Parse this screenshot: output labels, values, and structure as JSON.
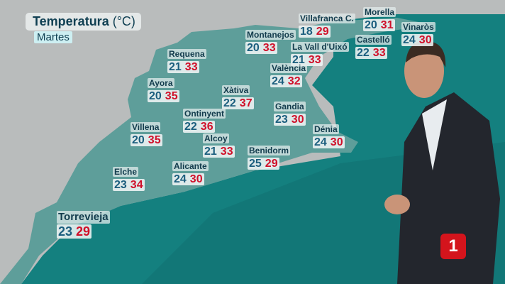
{
  "title": {
    "label": "Temperatura",
    "unit": "(°C)",
    "day": "Martes"
  },
  "colors": {
    "min": "#1b5e7e",
    "max": "#d0102a",
    "sea": "#14807f",
    "region": "#5e9e9a",
    "land": "#b9bcbc"
  },
  "stations": [
    {
      "name": "Villafranca C.",
      "min": "18",
      "max": "29"
    },
    {
      "name": "Morella",
      "min": "20",
      "max": "31"
    },
    {
      "name": "Vinaròs",
      "min": "24",
      "max": "30"
    },
    {
      "name": "Montanejos",
      "min": "20",
      "max": "33"
    },
    {
      "name": "Castelló",
      "min": "22",
      "max": "33"
    },
    {
      "name": "La Vall d'Uixó",
      "min": "21",
      "max": "33"
    },
    {
      "name": "Requena",
      "min": "21",
      "max": "33"
    },
    {
      "name": "València",
      "min": "24",
      "max": "32"
    },
    {
      "name": "Ayora",
      "min": "20",
      "max": "35"
    },
    {
      "name": "Xàtiva",
      "min": "22",
      "max": "37"
    },
    {
      "name": "Gandia",
      "min": "23",
      "max": "30"
    },
    {
      "name": "Ontinyent",
      "min": "22",
      "max": "36"
    },
    {
      "name": "Villena",
      "min": "20",
      "max": "35"
    },
    {
      "name": "Dénia",
      "min": "24",
      "max": "30"
    },
    {
      "name": "Alcoy",
      "min": "21",
      "max": "33"
    },
    {
      "name": "Benidorm",
      "min": "25",
      "max": "29"
    },
    {
      "name": "Alicante",
      "min": "24",
      "max": "30"
    },
    {
      "name": "Elche",
      "min": "23",
      "max": "34"
    },
    {
      "name": "Torrevieja",
      "min": "23",
      "max": "29"
    }
  ],
  "logo": {
    "text": "1"
  }
}
